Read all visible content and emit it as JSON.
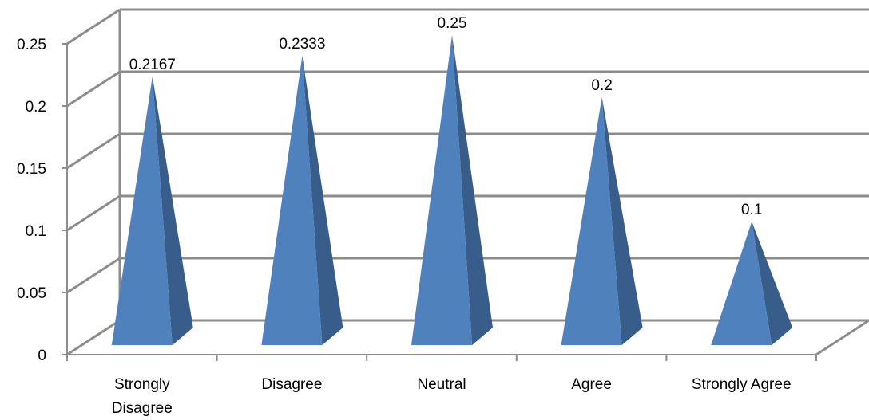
{
  "chart_data": {
    "type": "bar",
    "shape": "pyramid",
    "three_d": true,
    "categories": [
      "Strongly Disagree",
      "Disagree",
      "Neutral",
      "Agree",
      "Strongly Agree"
    ],
    "category_lines": [
      [
        "Strongly",
        "Disagree"
      ],
      [
        "Disagree"
      ],
      [
        "Neutral"
      ],
      [
        "Agree"
      ],
      [
        "Strongly Agree"
      ]
    ],
    "values": [
      0.2167,
      0.2333,
      0.25,
      0.2,
      0.1
    ],
    "value_labels": [
      "0.2167",
      "0.2333",
      "0.25",
      "0.2",
      "0.1"
    ],
    "yticks": [
      "0",
      "0.05",
      "0.1",
      "0.15",
      "0.2",
      "0.25"
    ],
    "ylim": [
      0,
      0.25
    ],
    "grid": true,
    "legend": "none",
    "colors": {
      "front": "#4F81BD",
      "side": "#385D8A",
      "grid": "#8C8C8C"
    }
  }
}
